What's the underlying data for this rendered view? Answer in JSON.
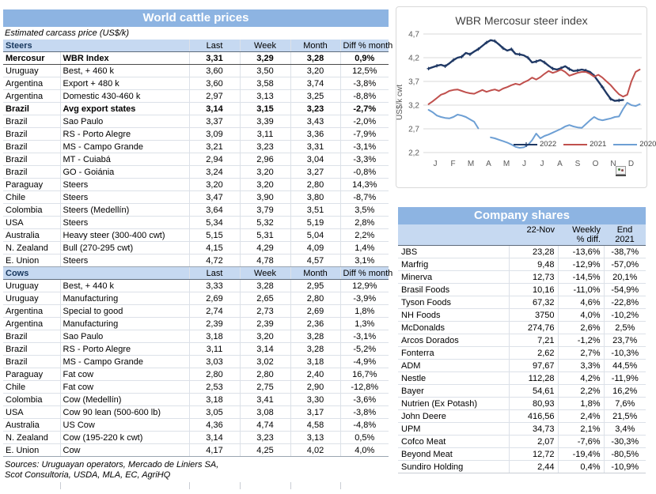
{
  "cattle": {
    "title": "World cattle prices",
    "subtitle": "Estimated carcass price (US$/k)",
    "col_headers": [
      "Last",
      "Week",
      "Month",
      "Diff % month"
    ],
    "sections": [
      {
        "name": "Steers",
        "rows": [
          {
            "country": "Mercosur",
            "desc": "WBR Index",
            "last": "3,31",
            "week": "3,29",
            "month": "3,28",
            "diff": "0,9%",
            "bold": true,
            "emph": true
          },
          {
            "country": "Uruguay",
            "desc": "Best, + 460 k",
            "last": "3,60",
            "week": "3,50",
            "month": "3,20",
            "diff": "12,5%"
          },
          {
            "country": "Argentina",
            "desc": "Export + 480 k",
            "last": "3,60",
            "week": "3,58",
            "month": "3,74",
            "diff": "-3,8%"
          },
          {
            "country": "Argentina",
            "desc": "Domestic 430-460 k",
            "last": "2,97",
            "week": "3,13",
            "month": "3,25",
            "diff": "-8,8%"
          },
          {
            "country": "Brazil",
            "desc": "Avg export states",
            "last": "3,14",
            "week": "3,15",
            "month": "3,23",
            "diff": "-2,7%",
            "bold": true
          },
          {
            "country": "Brazil",
            "desc": "Sao Paulo",
            "last": "3,37",
            "week": "3,39",
            "month": "3,43",
            "diff": "-2,0%"
          },
          {
            "country": "Brazil",
            "desc": "RS - Porto Alegre",
            "last": "3,09",
            "week": "3,11",
            "month": "3,36",
            "diff": "-7,9%"
          },
          {
            "country": "Brazil",
            "desc": "MS - Campo Grande",
            "last": "3,21",
            "week": "3,23",
            "month": "3,31",
            "diff": "-3,1%"
          },
          {
            "country": "Brazil",
            "desc": "MT - Cuiabá",
            "last": "2,94",
            "week": "2,96",
            "month": "3,04",
            "diff": "-3,3%"
          },
          {
            "country": "Brazil",
            "desc": "GO - Goiánia",
            "last": "3,24",
            "week": "3,20",
            "month": "3,27",
            "diff": "-0,8%"
          },
          {
            "country": "Paraguay",
            "desc": "Steers",
            "last": "3,20",
            "week": "3,20",
            "month": "2,80",
            "diff": "14,3%"
          },
          {
            "country": "Chile",
            "desc": "Steers",
            "last": "3,47",
            "week": "3,90",
            "month": "3,80",
            "diff": "-8,7%"
          },
          {
            "country": "Colombia",
            "desc": "Steers (Medellín)",
            "last": "3,64",
            "week": "3,79",
            "month": "3,51",
            "diff": "3,5%"
          },
          {
            "country": "USA",
            "desc": "Steers",
            "last": "5,34",
            "week": "5,32",
            "month": "5,19",
            "diff": "2,8%"
          },
          {
            "country": "Australia",
            "desc": "Heavy steer (300-400 cwt)",
            "last": "5,15",
            "week": "5,31",
            "month": "5,04",
            "diff": "2,2%"
          },
          {
            "country": "N. Zealand",
            "desc": "Bull (270-295 cwt)",
            "last": "4,15",
            "week": "4,29",
            "month": "4,09",
            "diff": "1,4%"
          },
          {
            "country": "E. Union",
            "desc": "Steers",
            "last": "4,72",
            "week": "4,78",
            "month": "4,57",
            "diff": "3,1%"
          }
        ]
      },
      {
        "name": "Cows",
        "rows": [
          {
            "country": "Uruguay",
            "desc": "Best, + 440 k",
            "last": "3,33",
            "week": "3,28",
            "month": "2,95",
            "diff": "12,9%"
          },
          {
            "country": "Uruguay",
            "desc": "Manufacturing",
            "last": "2,69",
            "week": "2,65",
            "month": "2,80",
            "diff": "-3,9%"
          },
          {
            "country": "Argentina",
            "desc": "Special to good",
            "last": "2,74",
            "week": "2,73",
            "month": "2,69",
            "diff": "1,8%"
          },
          {
            "country": "Argentina",
            "desc": "Manufacturing",
            "last": "2,39",
            "week": "2,39",
            "month": "2,36",
            "diff": "1,3%"
          },
          {
            "country": "Brazil",
            "desc": "Sao Paulo",
            "last": "3,18",
            "week": "3,20",
            "month": "3,28",
            "diff": "-3,1%"
          },
          {
            "country": "Brazil",
            "desc": "RS - Porto Alegre",
            "last": "3,11",
            "week": "3,14",
            "month": "3,28",
            "diff": "-5,2%"
          },
          {
            "country": "Brazil",
            "desc": "MS - Campo Grande",
            "last": "3,03",
            "week": "3,02",
            "month": "3,18",
            "diff": "-4,9%"
          },
          {
            "country": "Paraguay",
            "desc": "Fat cow",
            "last": "2,80",
            "week": "2,80",
            "month": "2,40",
            "diff": "16,7%"
          },
          {
            "country": "Chile",
            "desc": "Fat cow",
            "last": "2,53",
            "week": "2,75",
            "month": "2,90",
            "diff": "-12,8%"
          },
          {
            "country": "Colombia",
            "desc": "Cow (Medellín)",
            "last": "3,18",
            "week": "3,41",
            "month": "3,30",
            "diff": "-3,6%"
          },
          {
            "country": "USA",
            "desc": "Cow 90 lean (500-600 lb)",
            "last": "3,05",
            "week": "3,08",
            "month": "3,17",
            "diff": "-3,8%"
          },
          {
            "country": "Australia",
            "desc": "US Cow",
            "last": "4,36",
            "week": "4,74",
            "month": "4,58",
            "diff": "-4,8%"
          },
          {
            "country": "N. Zealand",
            "desc": "Cow (195-220 k cwt)",
            "last": "3,14",
            "week": "3,23",
            "month": "3,13",
            "diff": "0,5%"
          },
          {
            "country": "E. Union",
            "desc": "Cow",
            "last": "4,17",
            "week": "4,25",
            "month": "4,02",
            "diff": "4,0%"
          }
        ]
      }
    ],
    "sources": [
      "Sources: Uruguayan operators, Mercado de Liniers SA,",
      "Scot Consultoria, USDA, MLA, EC, AgriHQ"
    ]
  },
  "chart_data": {
    "type": "line",
    "title": "WBR Mercosur steer index",
    "ylabel": "US$/k cwt",
    "ylim": [
      2.2,
      4.7
    ],
    "yticks": [
      "4,7",
      "4,2",
      "3,7",
      "3,2",
      "2,7",
      "2,2"
    ],
    "ytick_values": [
      4.7,
      4.2,
      3.7,
      3.2,
      2.7,
      2.2
    ],
    "x_axis": "weeks of year (Jan-Dec)",
    "x_max": 52,
    "month_labels": [
      "J",
      "F",
      "M",
      "A",
      "M",
      "J",
      "J",
      "A",
      "S",
      "O",
      "N",
      "D"
    ],
    "grid": true,
    "legend_position": "inside bottom-right",
    "series": [
      {
        "name": "2022",
        "color": "#1F3864",
        "marker": "plus",
        "values": [
          3.97,
          4.0,
          4.03,
          4.05,
          4.02,
          4.08,
          4.15,
          4.2,
          4.22,
          4.3,
          4.27,
          4.33,
          4.38,
          4.45,
          4.52,
          4.57,
          4.55,
          4.48,
          4.4,
          4.35,
          4.38,
          4.28,
          4.27,
          4.25,
          4.2,
          4.1,
          4.12,
          4.15,
          4.1,
          4.03,
          3.97,
          3.95,
          3.98,
          4.02,
          3.96,
          3.92,
          3.93,
          3.95,
          3.93,
          3.9,
          3.82,
          3.7,
          3.58,
          3.45,
          3.33,
          3.29,
          3.3,
          3.31
        ]
      },
      {
        "name": "2021",
        "color": "#C0504D",
        "values": [
          3.22,
          3.28,
          3.35,
          3.42,
          3.45,
          3.5,
          3.52,
          3.53,
          3.5,
          3.47,
          3.45,
          3.44,
          3.48,
          3.52,
          3.48,
          3.51,
          3.53,
          3.5,
          3.55,
          3.58,
          3.62,
          3.65,
          3.63,
          3.68,
          3.72,
          3.78,
          3.74,
          3.79,
          3.86,
          3.92,
          3.88,
          3.91,
          3.95,
          3.9,
          3.82,
          3.85,
          3.88,
          3.9,
          3.9,
          3.86,
          3.8,
          3.84,
          3.78,
          3.7,
          3.62,
          3.52,
          3.43,
          3.38,
          3.42,
          3.7,
          3.9,
          3.95
        ]
      },
      {
        "name": "2020",
        "color": "#6D9FD4",
        "values": [
          3.1,
          3.05,
          2.98,
          2.95,
          2.93,
          2.92,
          2.95,
          3.0,
          2.98,
          2.95,
          2.9,
          2.85,
          2.71,
          null,
          null,
          2.52,
          2.5,
          2.47,
          2.44,
          2.41,
          2.37,
          2.32,
          2.3,
          2.31,
          2.36,
          2.46,
          2.6,
          2.5,
          2.55,
          2.58,
          2.62,
          2.66,
          2.7,
          2.75,
          2.78,
          2.75,
          2.73,
          2.72,
          2.8,
          2.88,
          2.95,
          2.9,
          2.88,
          2.9,
          2.92,
          2.95,
          2.96,
          3.12,
          3.25,
          3.2,
          3.18,
          3.22
        ]
      }
    ]
  },
  "company": {
    "title": "Company shares",
    "col_headers": [
      "22-Nov",
      "Weekly",
      "% diff.",
      "End 2021"
    ],
    "rows": [
      {
        "name": "JBS",
        "price": "23,28",
        "weekly": "-13,6%",
        "end2021": "-38,7%"
      },
      {
        "name": "Marfrig",
        "price": "9,48",
        "weekly": "-12,9%",
        "end2021": "-57,0%"
      },
      {
        "name": "Minerva",
        "price": "12,73",
        "weekly": "-14,5%",
        "end2021": "20,1%"
      },
      {
        "name": "Brasil Foods",
        "price": "10,16",
        "weekly": "-11,0%",
        "end2021": "-54,9%"
      },
      {
        "name": "Tyson Foods",
        "price": "67,32",
        "weekly": "4,6%",
        "end2021": "-22,8%"
      },
      {
        "name": "NH Foods",
        "price": "3750",
        "weekly": "4,0%",
        "end2021": "-10,2%"
      },
      {
        "name": "McDonalds",
        "price": "274,76",
        "weekly": "2,6%",
        "end2021": "2,5%"
      },
      {
        "name": "Arcos Dorados",
        "price": "7,21",
        "weekly": "-1,2%",
        "end2021": "23,7%"
      },
      {
        "name": "Fonterra",
        "price": "2,62",
        "weekly": "2,7%",
        "end2021": "-10,3%"
      },
      {
        "name": "ADM",
        "price": "97,67",
        "weekly": "3,3%",
        "end2021": "44,5%"
      },
      {
        "name": "Nestle",
        "price": "112,28",
        "weekly": "4,2%",
        "end2021": "-11,9%"
      },
      {
        "name": "Bayer",
        "price": "54,61",
        "weekly": "2,2%",
        "end2021": "16,2%"
      },
      {
        "name": "Nutrien (Ex Potash)",
        "price": "80,93",
        "weekly": "1,8%",
        "end2021": "7,6%"
      },
      {
        "name": "John Deere",
        "price": "416,56",
        "weekly": "2,4%",
        "end2021": "21,5%"
      },
      {
        "name": "UPM",
        "price": "34,73",
        "weekly": "2,1%",
        "end2021": "3,4%"
      },
      {
        "name": "Cofco Meat",
        "price": "2,07",
        "weekly": "-7,6%",
        "end2021": "-30,3%"
      },
      {
        "name": "Beyond Meat",
        "price": "12,72",
        "weekly": "-19,4%",
        "end2021": "-80,5%"
      },
      {
        "name": "Sundiro Holding",
        "price": "2,44",
        "weekly": "0,4%",
        "end2021": "-10,9%"
      }
    ]
  },
  "colors": {
    "banner_blue": "#8DB4E2",
    "header_blue": "#C6D9F1",
    "section_text_navy": "#17375D",
    "line_2022": "#1F3864",
    "line_2021": "#C0504D",
    "line_2020": "#6D9FD4",
    "gridline": "#D9D9D9"
  }
}
